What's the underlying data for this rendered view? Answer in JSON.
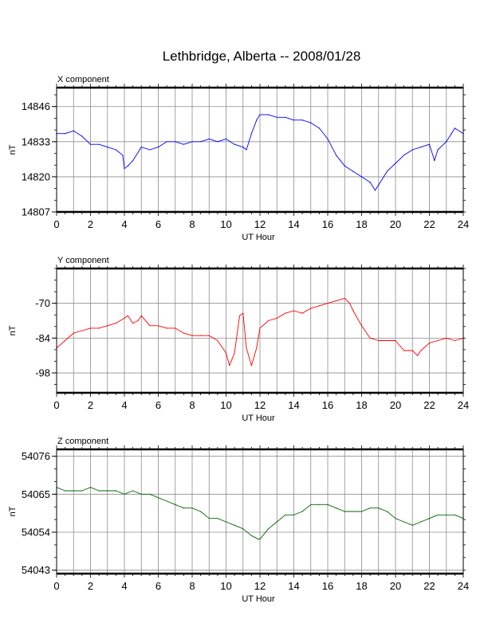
{
  "page_title": "Lethbridge, Alberta -- 2008/01/28",
  "chart_data": [
    {
      "type": "line",
      "subtitle": "X component",
      "xlabel": "UT Hour",
      "ylabel": "nT",
      "x_ticks": [
        0,
        2,
        4,
        6,
        8,
        10,
        12,
        14,
        16,
        18,
        20,
        22,
        24
      ],
      "y_ticks": [
        14807,
        14820,
        14833,
        14846
      ],
      "xlim": [
        0,
        24
      ],
      "ylim": [
        14807,
        14853
      ],
      "grid": true,
      "series_color": "#0000ff",
      "series": [
        {
          "x": [
            0,
            0.5,
            1,
            1.5,
            2,
            2.5,
            3,
            3.5,
            3.9,
            4.0,
            4.2,
            4.5,
            5,
            5.5,
            6,
            6.5,
            7,
            7.5,
            8,
            8.5,
            9,
            9.5,
            10,
            10.5,
            11,
            11.2,
            11.5,
            11.8,
            12,
            12.5,
            13,
            13.5,
            14,
            14.5,
            15,
            15.5,
            16,
            16.5,
            17,
            17.5,
            18,
            18.5,
            18.8,
            19,
            19.5,
            20,
            20.5,
            21,
            21.5,
            22,
            22.3,
            22.5,
            23,
            23.3,
            23.5,
            24
          ],
          "values": [
            14836,
            14836,
            14837,
            14835,
            14832,
            14832,
            14831,
            14830,
            14828,
            14823,
            14824,
            14826,
            14831,
            14830,
            14831,
            14833,
            14833,
            14832,
            14833,
            14833,
            14834,
            14833,
            14834,
            14832,
            14831,
            14830,
            14836,
            14841,
            14843,
            14843,
            14842,
            14842,
            14841,
            14841,
            14840,
            14838,
            14834,
            14828,
            14824,
            14822,
            14820,
            14818,
            14815,
            14817,
            14822,
            14825,
            14828,
            14830,
            14831,
            14832,
            14826,
            14830,
            14833,
            14836,
            14838,
            14836
          ]
        }
      ]
    },
    {
      "type": "line",
      "subtitle": "Y component",
      "xlabel": "UT Hour",
      "ylabel": "nT",
      "x_ticks": [
        0,
        2,
        4,
        6,
        8,
        10,
        12,
        14,
        16,
        18,
        20,
        22,
        24
      ],
      "y_ticks": [
        -98,
        -84,
        -70
      ],
      "xlim": [
        0,
        24
      ],
      "ylim": [
        -106,
        -56
      ],
      "grid": true,
      "series_color": "#ff0000",
      "series": [
        {
          "x": [
            0,
            0.5,
            1,
            1.5,
            2,
            2.5,
            3,
            3.5,
            4,
            4.2,
            4.5,
            4.8,
            5,
            5.5,
            6,
            6.5,
            7,
            7.5,
            8,
            8.5,
            9,
            9.5,
            10,
            10.2,
            10.5,
            10.8,
            11,
            11.2,
            11.5,
            11.8,
            12,
            12.5,
            13,
            13.5,
            14,
            14.5,
            15,
            15.5,
            16,
            16.5,
            17,
            17.3,
            17.5,
            18,
            18.5,
            19,
            19.5,
            20,
            20.5,
            21,
            21.3,
            21.5,
            22,
            22.5,
            23,
            23.5,
            24
          ],
          "values": [
            -88,
            -85,
            -82,
            -81,
            -80,
            -80,
            -79,
            -78,
            -76,
            -75,
            -78,
            -77,
            -75,
            -79,
            -79,
            -80,
            -80,
            -82,
            -83,
            -83,
            -83,
            -85,
            -90,
            -95,
            -90,
            -75,
            -74,
            -88,
            -95,
            -88,
            -80,
            -77,
            -76,
            -74,
            -73,
            -74,
            -72,
            -71,
            -70,
            -69,
            -68,
            -70,
            -73,
            -79,
            -84,
            -85,
            -85,
            -85,
            -89,
            -89,
            -91,
            -89,
            -86,
            -85,
            -84,
            -85,
            -84
          ]
        }
      ]
    },
    {
      "type": "line",
      "subtitle": "Z component",
      "xlabel": "UT Hour",
      "ylabel": "nT",
      "x_ticks": [
        0,
        2,
        4,
        6,
        8,
        10,
        12,
        14,
        16,
        18,
        20,
        22,
        24
      ],
      "y_ticks": [
        54043,
        54054,
        54065,
        54076
      ],
      "xlim": [
        0,
        24
      ],
      "ylim": [
        54042,
        54078
      ],
      "grid": true,
      "series_color": "#006600",
      "series": [
        {
          "x": [
            0,
            0.5,
            1,
            1.5,
            2,
            2.5,
            3,
            3.5,
            4,
            4.5,
            5,
            5.5,
            6,
            6.5,
            7,
            7.5,
            8,
            8.5,
            9,
            9.5,
            10,
            10.5,
            11,
            11.5,
            11.9,
            12,
            12.5,
            13,
            13.5,
            14,
            14.5,
            15,
            15.5,
            16,
            16.5,
            17,
            17.5,
            18,
            18.5,
            19,
            19.5,
            20,
            20.5,
            21,
            21.5,
            22,
            22.5,
            23,
            23.5,
            24
          ],
          "values": [
            54067,
            54066,
            54066,
            54066,
            54067,
            54066,
            54066,
            54066,
            54065,
            54066,
            54065,
            54065,
            54064,
            54063,
            54062,
            54061,
            54061,
            54060,
            54058,
            54058,
            54057,
            54056,
            54055,
            54053,
            54052,
            54052,
            54055,
            54057,
            54059,
            54059,
            54060,
            54062,
            54062,
            54062,
            54061,
            54060,
            54060,
            54060,
            54061,
            54061,
            54060,
            54058,
            54057,
            54056,
            54057,
            54058,
            54059,
            54059,
            54059,
            54058
          ]
        }
      ]
    }
  ]
}
